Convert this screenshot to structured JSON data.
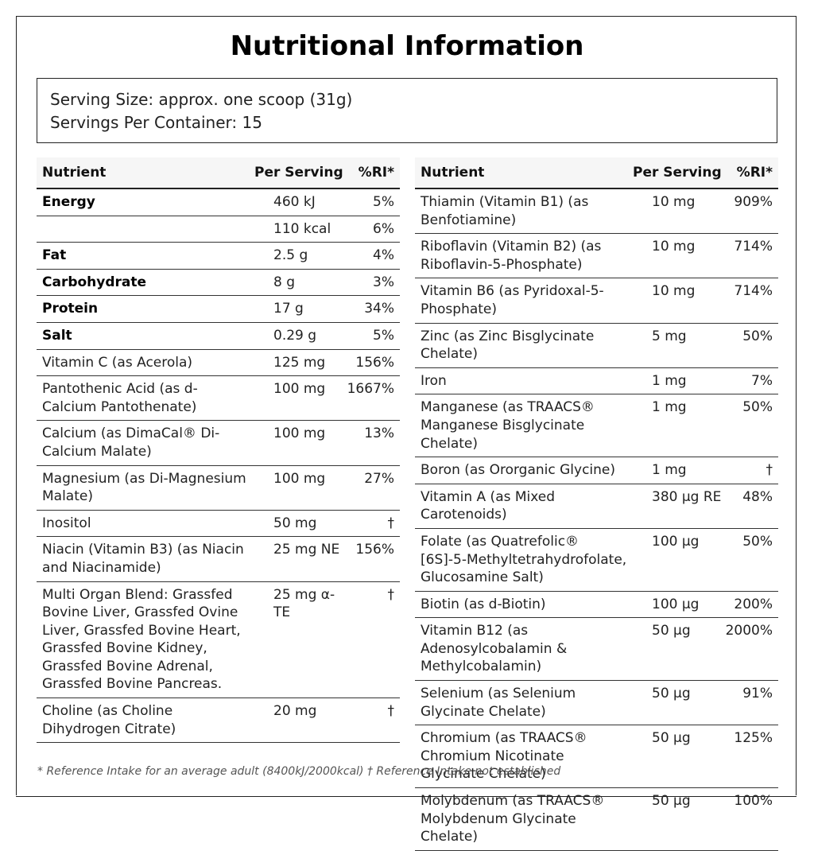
{
  "title": "Nutritional Information",
  "serving": {
    "size": "Serving Size: approx. one scoop (31g)",
    "per_container": "Servings Per Container: 15"
  },
  "headers": {
    "nutrient": "Nutrient",
    "per_serving": "Per Serving",
    "ri": "%RI*"
  },
  "left_rows": [
    {
      "nutrient": "Energy",
      "amount": "460 kJ",
      "ri": "5%",
      "bold": true
    },
    {
      "nutrient": "",
      "amount": "110 kcal",
      "ri": "6%",
      "bold": false
    },
    {
      "nutrient": "Fat",
      "amount": "2.5 g",
      "ri": "4%",
      "bold": true
    },
    {
      "nutrient": "Carbohydrate",
      "amount": "8 g",
      "ri": "3%",
      "bold": true
    },
    {
      "nutrient": "Protein",
      "amount": "17 g",
      "ri": "34%",
      "bold": true
    },
    {
      "nutrient": "Salt",
      "amount": "0.29 g",
      "ri": "5%",
      "bold": true
    },
    {
      "nutrient": "Vitamin C (as Acerola)",
      "amount": "125 mg",
      "ri": "156%",
      "bold": false
    },
    {
      "nutrient": "Pantothenic Acid (as d-Calcium Pantothenate)",
      "amount": "100 mg",
      "ri": "1667%",
      "bold": false
    },
    {
      "nutrient": "Calcium (as DimaCal® Di-Calcium Malate)",
      "amount": "100 mg",
      "ri": "13%",
      "bold": false
    },
    {
      "nutrient": "Magnesium (as Di-Magnesium Malate)",
      "amount": "100 mg",
      "ri": "27%",
      "bold": false
    },
    {
      "nutrient": "Inositol",
      "amount": "50 mg",
      "ri": "†",
      "bold": false
    },
    {
      "nutrient": "Niacin (Vitamin B3) (as Niacin and Niacinamide)",
      "amount": "25 mg NE",
      "ri": "156%",
      "bold": false
    },
    {
      "nutrient": "Multi Organ Blend: Grassfed Bovine Liver, Grassfed Ovine Liver, Grassfed Bovine Heart, Grassfed Bovine Kidney, Grassfed Bovine Adrenal, Grassfed Bovine Pancreas.",
      "amount": "25 mg α-TE",
      "ri": "†",
      "bold": false
    },
    {
      "nutrient": "Choline (as Choline Dihydrogen Citrate)",
      "amount": "20 mg",
      "ri": "†",
      "bold": false
    }
  ],
  "right_rows": [
    {
      "nutrient": "Thiamin (Vitamin B1) (as Benfotiamine)",
      "amount": "10 mg",
      "ri": "909%"
    },
    {
      "nutrient": "Riboflavin (Vitamin B2) (as Riboflavin-5-Phosphate)",
      "amount": "10 mg",
      "ri": "714%"
    },
    {
      "nutrient": "Vitamin B6 (as Pyridoxal-5-Phosphate)",
      "amount": "10 mg",
      "ri": "714%"
    },
    {
      "nutrient": "Zinc (as Zinc Bisglycinate Chelate)",
      "amount": "5 mg",
      "ri": "50%"
    },
    {
      "nutrient": "Iron",
      "amount": "1 mg",
      "ri": "7%"
    },
    {
      "nutrient": "Manganese (as TRAACS® Manganese Bisglycinate Chelate)",
      "amount": "1 mg",
      "ri": "50%"
    },
    {
      "nutrient": "Boron (as Ororganic Glycine)",
      "amount": "1 mg",
      "ri": "†"
    },
    {
      "nutrient": "Vitamin A (as Mixed Carotenoids)",
      "amount": "380 µg RE",
      "ri": "48%"
    },
    {
      "nutrient": "Folate (as Quatrefolic® [6S]-5-Methyltetrahydrofolate, Glucosamine Salt)",
      "amount": "100 µg",
      "ri": "50%"
    },
    {
      "nutrient": "Biotin (as d-Biotin)",
      "amount": "100 µg",
      "ri": "200%"
    },
    {
      "nutrient": "Vitamin B12 (as Adenosylcobalamin & Methylcobalamin)",
      "amount": "50 µg",
      "ri": "2000%"
    },
    {
      "nutrient": "Selenium (as Selenium Glycinate Chelate)",
      "amount": "50 µg",
      "ri": "91%"
    },
    {
      "nutrient": "Chromium (as TRAACS® Chromium Nicotinate Glycinate Chelate)",
      "amount": "50 µg",
      "ri": "125%"
    },
    {
      "nutrient": "Molybdenum (as TRAACS® Molybdenum Glycinate Chelate)",
      "amount": "50 µg",
      "ri": "100%"
    }
  ],
  "footnote": "* Reference Intake for an average adult (8400kJ/2000kcal) † Reference Intake not established"
}
